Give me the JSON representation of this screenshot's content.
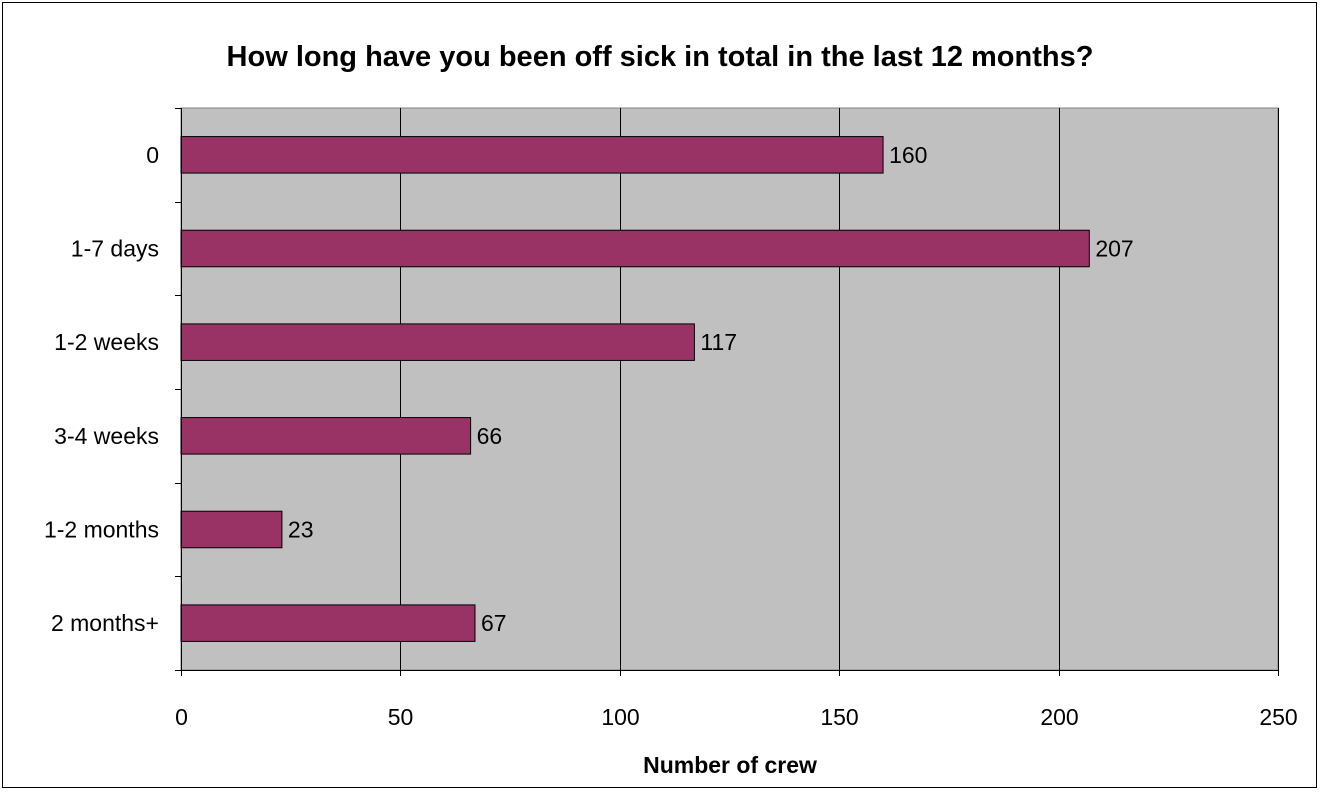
{
  "chart_data": {
    "type": "bar",
    "orientation": "horizontal",
    "title": "How long have you been off sick in total in the last 12 months?",
    "xlabel": "Number of crew",
    "ylabel": "",
    "categories": [
      "0",
      "1-7 days",
      "1-2 weeks",
      "3-4 weeks",
      "1-2 months",
      "2 months+"
    ],
    "values": [
      160,
      207,
      117,
      66,
      23,
      67
    ],
    "xlim": [
      0,
      250
    ],
    "x_ticks": [
      0,
      50,
      100,
      150,
      200,
      250
    ],
    "x_tick_labels": [
      "0",
      "50",
      "100",
      "150",
      "200",
      "250"
    ],
    "grid": "vertical",
    "legend": "none",
    "data_labels": [
      "160",
      "207",
      "117",
      "66",
      "23",
      "67"
    ],
    "colors": {
      "bar_fill": "#993366",
      "plot_background": "#c0c0c0",
      "gridline": "#000000",
      "page_background": "#ffffff"
    }
  }
}
